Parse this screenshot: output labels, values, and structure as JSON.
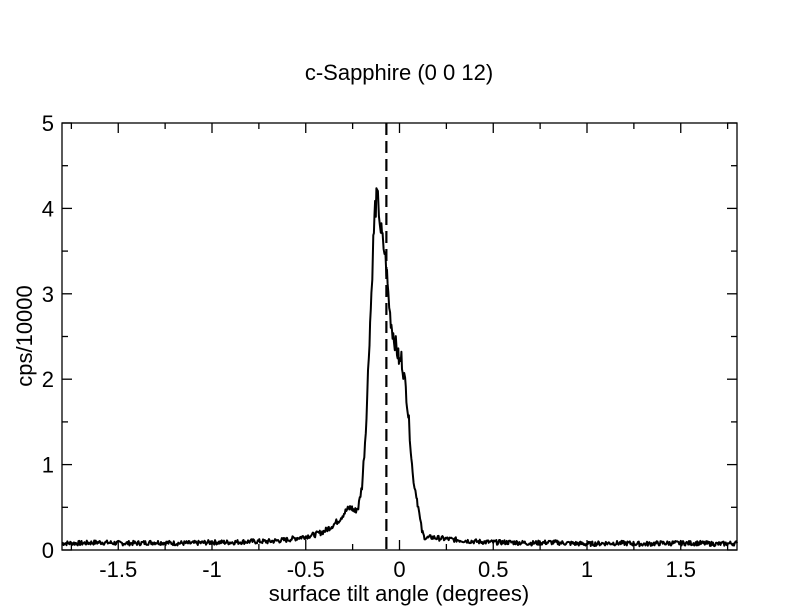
{
  "chart_data": {
    "type": "line",
    "title": "c-Sapphire (0 0 12)",
    "xlabel": "surface tilt angle (degrees)",
    "ylabel": "cps/10000",
    "xlim": [
      -1.8,
      1.8
    ],
    "ylim": [
      0,
      5
    ],
    "x_ticks": [
      -1.5,
      -1,
      -0.5,
      0,
      0.5,
      1,
      1.5
    ],
    "x_tick_labels": [
      "-1.5",
      "-1",
      "-0.5",
      "0",
      "0.5",
      "1",
      "1.5"
    ],
    "y_ticks": [
      0,
      1,
      2,
      3,
      4,
      5
    ],
    "y_tick_labels": [
      "0",
      "1",
      "2",
      "3",
      "4",
      "5"
    ],
    "grid": false,
    "reference_line": {
      "x": -0.07,
      "style": "dashed"
    },
    "series": [
      {
        "x": [
          -1.8,
          -1.7,
          -1.6,
          -1.5,
          -1.4,
          -1.3,
          -1.2,
          -1.1,
          -1.0,
          -0.9,
          -0.8,
          -0.7,
          -0.6,
          -0.55,
          -0.5,
          -0.45,
          -0.4,
          -0.35,
          -0.32,
          -0.3,
          -0.28,
          -0.26,
          -0.25,
          -0.24,
          -0.22,
          -0.2,
          -0.18,
          -0.16,
          -0.15,
          -0.14,
          -0.13,
          -0.12,
          -0.11,
          -0.1,
          -0.09,
          -0.08,
          -0.07,
          -0.06,
          -0.05,
          -0.04,
          -0.03,
          -0.02,
          -0.01,
          0.0,
          0.01,
          0.02,
          0.03,
          0.04,
          0.05,
          0.06,
          0.07,
          0.08,
          0.09,
          0.1,
          0.11,
          0.12,
          0.13,
          0.14,
          0.15,
          0.17,
          0.2,
          0.25,
          0.3,
          0.4,
          0.5,
          0.6,
          0.7,
          0.8,
          0.9,
          1.0,
          1.1,
          1.2,
          1.3,
          1.4,
          1.5,
          1.6,
          1.7,
          1.8
        ],
        "values": [
          0.08,
          0.08,
          0.09,
          0.08,
          0.08,
          0.09,
          0.08,
          0.08,
          0.09,
          0.09,
          0.1,
          0.1,
          0.12,
          0.14,
          0.16,
          0.18,
          0.22,
          0.3,
          0.36,
          0.42,
          0.47,
          0.5,
          0.48,
          0.45,
          0.5,
          0.75,
          1.4,
          2.5,
          3.0,
          3.6,
          4.0,
          4.12,
          4.0,
          3.75,
          3.6,
          3.5,
          3.3,
          3.0,
          2.75,
          2.6,
          2.5,
          2.4,
          2.3,
          2.2,
          2.25,
          2.1,
          1.95,
          1.75,
          1.5,
          1.2,
          0.9,
          0.75,
          0.65,
          0.5,
          0.35,
          0.22,
          0.16,
          0.14,
          0.14,
          0.15,
          0.14,
          0.13,
          0.12,
          0.1,
          0.09,
          0.09,
          0.08,
          0.09,
          0.08,
          0.07,
          0.08,
          0.08,
          0.07,
          0.08,
          0.08,
          0.08,
          0.07,
          0.08
        ]
      }
    ]
  }
}
